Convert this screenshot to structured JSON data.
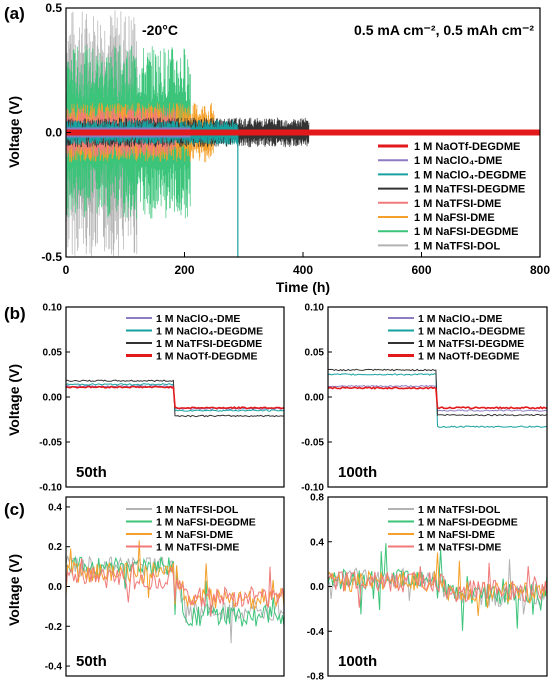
{
  "chart_data": [
    {
      "panel": "(a)",
      "type": "line",
      "ylabel": "Voltage (V)",
      "xlabel": "Time (h)",
      "xlim": [
        0,
        800
      ],
      "ylim": [
        -0.5,
        0.5
      ],
      "xticks": [
        "0",
        "200",
        "400",
        "600",
        "800"
      ],
      "yticks": [
        "-0.5",
        "0.0",
        "0.5"
      ],
      "annotations": [
        "-20°C",
        "0.5 mA cm⁻², 0.5 mAh cm⁻²"
      ],
      "series": [
        {
          "name": "1 M NaOTf-DEGDME",
          "color": "#e31a1c",
          "duration_h": 800,
          "amplitude": 0.012
        },
        {
          "name": "1 M NaClO₄-DME",
          "color": "#8e7cc3",
          "duration_h": 210,
          "amplitude": 0.02
        },
        {
          "name": "1 M NaClO₄-DEGDME",
          "color": "#17a2a0",
          "duration_h": 290,
          "amplitude": 0.05
        },
        {
          "name": "1 M NaTFSI-DEGDME",
          "color": "#333333",
          "duration_h": 410,
          "amplitude": 0.06
        },
        {
          "name": "1 M NaTFSI-DME",
          "color": "#f07a7a",
          "duration_h": 185,
          "amplitude": 0.1
        },
        {
          "name": "1 M NaFSI-DME",
          "color": "#f5a02a",
          "duration_h": 250,
          "amplitude": 0.12
        },
        {
          "name": "1 M NaFSI-DEGDME",
          "color": "#3cc47a",
          "duration_h": 210,
          "amplitude": 0.35
        },
        {
          "name": "1 M NaTFSI-DOL",
          "color": "#b3b3b3",
          "duration_h": 120,
          "amplitude": 0.5
        }
      ]
    },
    {
      "panel": "(b) 50th",
      "type": "line",
      "ylabel": "Voltage (V)",
      "ylim": [
        -0.1,
        0.1
      ],
      "yticks": [
        "0.10",
        "0.05",
        "0.00",
        "-0.05",
        "-0.10"
      ],
      "cycle_label": "50th",
      "series": [
        {
          "name": "1 M NaClO₄-DME",
          "color": "#8e7cc3",
          "plate": 0.012,
          "strip": -0.013
        },
        {
          "name": "1 M NaClO₄-DEGDME",
          "color": "#17a2a0",
          "plate": 0.014,
          "strip": -0.015
        },
        {
          "name": "1 M NaTFSI-DEGDME",
          "color": "#333333",
          "plate": 0.018,
          "strip": -0.021
        },
        {
          "name": "1 M NaOTf-DEGDME",
          "color": "#e31a1c",
          "plate": 0.011,
          "strip": -0.012
        }
      ]
    },
    {
      "panel": "(b) 100th",
      "type": "line",
      "ylim": [
        -0.1,
        0.1
      ],
      "yticks": [
        "0.10",
        "0.05",
        "0.00",
        "-0.05",
        "-0.10"
      ],
      "cycle_label": "100th",
      "series": [
        {
          "name": "1 M NaClO₄-DME",
          "color": "#8e7cc3",
          "plate": 0.012,
          "strip": -0.015
        },
        {
          "name": "1 M NaClO₄-DEGDME",
          "color": "#17a2a0",
          "plate": 0.025,
          "strip": -0.033
        },
        {
          "name": "1 M NaTFSI-DEGDME",
          "color": "#333333",
          "plate": 0.03,
          "strip": -0.02
        },
        {
          "name": "1 M NaOTf-DEGDME",
          "color": "#e31a1c",
          "plate": 0.01,
          "strip": -0.012
        }
      ]
    },
    {
      "panel": "(c) 50th",
      "type": "line",
      "ylabel": "Voltage (V)",
      "ylim": [
        -0.45,
        0.45
      ],
      "yticks": [
        "0.4",
        "0.2",
        "0.0",
        "-0.2",
        "-0.4"
      ],
      "cycle_label": "50th",
      "series": [
        {
          "name": "1 M NaTFSI-DOL",
          "color": "#b3b3b3",
          "plate": 0.1,
          "strip": -0.12
        },
        {
          "name": "1 M NaFSI-DEGDME",
          "color": "#3cc47a",
          "plate": 0.1,
          "strip": -0.15
        },
        {
          "name": "1 M NaFSI-DME",
          "color": "#f5a02a",
          "plate": 0.07,
          "strip": -0.06
        },
        {
          "name": "1 M NaTFSI-DME",
          "color": "#f07a7a",
          "plate": 0.04,
          "strip": -0.05
        }
      ]
    },
    {
      "panel": "(c) 100th",
      "type": "line",
      "ylim": [
        -0.8,
        0.8
      ],
      "yticks": [
        "0.8",
        "0.4",
        "0.0",
        "-0.4",
        "-0.8"
      ],
      "cycle_label": "100th",
      "series": [
        {
          "name": "1 M NaTFSI-DOL",
          "color": "#b3b3b3",
          "plate": 0.08,
          "strip": -0.08
        },
        {
          "name": "1 M NaFSI-DEGDME",
          "color": "#3cc47a",
          "plate": 0.07,
          "strip": -0.07
        },
        {
          "name": "1 M NaFSI-DME",
          "color": "#f5a02a",
          "plate": 0.05,
          "strip": -0.05
        },
        {
          "name": "1 M NaTFSI-DME",
          "color": "#f07a7a",
          "plate": 0.04,
          "strip": -0.04
        }
      ]
    }
  ],
  "labels": {
    "panel_a": "(a)",
    "panel_b": "(b)",
    "panel_c": "(c)"
  }
}
